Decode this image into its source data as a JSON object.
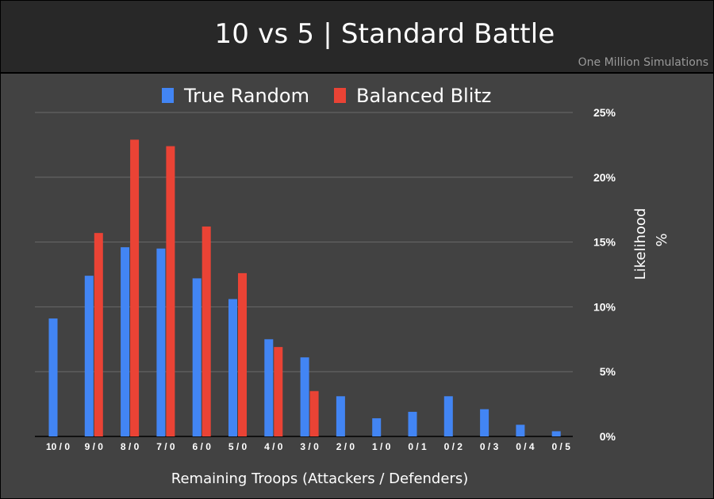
{
  "header": {
    "title": "10 vs 5 | Standard Battle",
    "subtitle": "One Million Simulations"
  },
  "colors": {
    "background": "#424242",
    "header": "#282828",
    "grid": "#6a6a6a",
    "true_random": "#4285F4",
    "balanced_blitz": "#EA4335"
  },
  "chart_data": {
    "type": "bar",
    "title": "10 vs 5 | Standard Battle",
    "subtitle": "One Million Simulations",
    "xlabel": "Remaining Troops (Attackers / Defenders)",
    "ylabel_lines": [
      "Likelihood",
      "%"
    ],
    "ylim": [
      0,
      25
    ],
    "yticks": [
      0,
      5,
      10,
      15,
      20,
      25
    ],
    "ytick_labels": [
      "0%",
      "5%",
      "10%",
      "15%",
      "20%",
      "25%"
    ],
    "y_axis_side": "right",
    "grid": true,
    "legend_position": "top",
    "categories": [
      "10 / 0",
      "9 / 0",
      "8 / 0",
      "7 / 0",
      "6 / 0",
      "5 / 0",
      "4 / 0",
      "3 / 0",
      "2 / 0",
      "1 / 0",
      "0 / 1",
      "0 / 2",
      "0 / 3",
      "0 / 4",
      "0 / 5"
    ],
    "series": [
      {
        "name": "True Random",
        "color": "#4285F4",
        "values": [
          9.1,
          12.4,
          14.6,
          14.5,
          12.2,
          10.6,
          7.5,
          6.1,
          3.1,
          1.4,
          1.9,
          3.1,
          2.1,
          0.9,
          0.4
        ]
      },
      {
        "name": "Balanced Blitz",
        "color": "#EA4335",
        "values": [
          0,
          15.7,
          22.9,
          22.4,
          16.2,
          12.6,
          6.9,
          3.5,
          0,
          0,
          0,
          0,
          0,
          0,
          0
        ]
      }
    ]
  }
}
